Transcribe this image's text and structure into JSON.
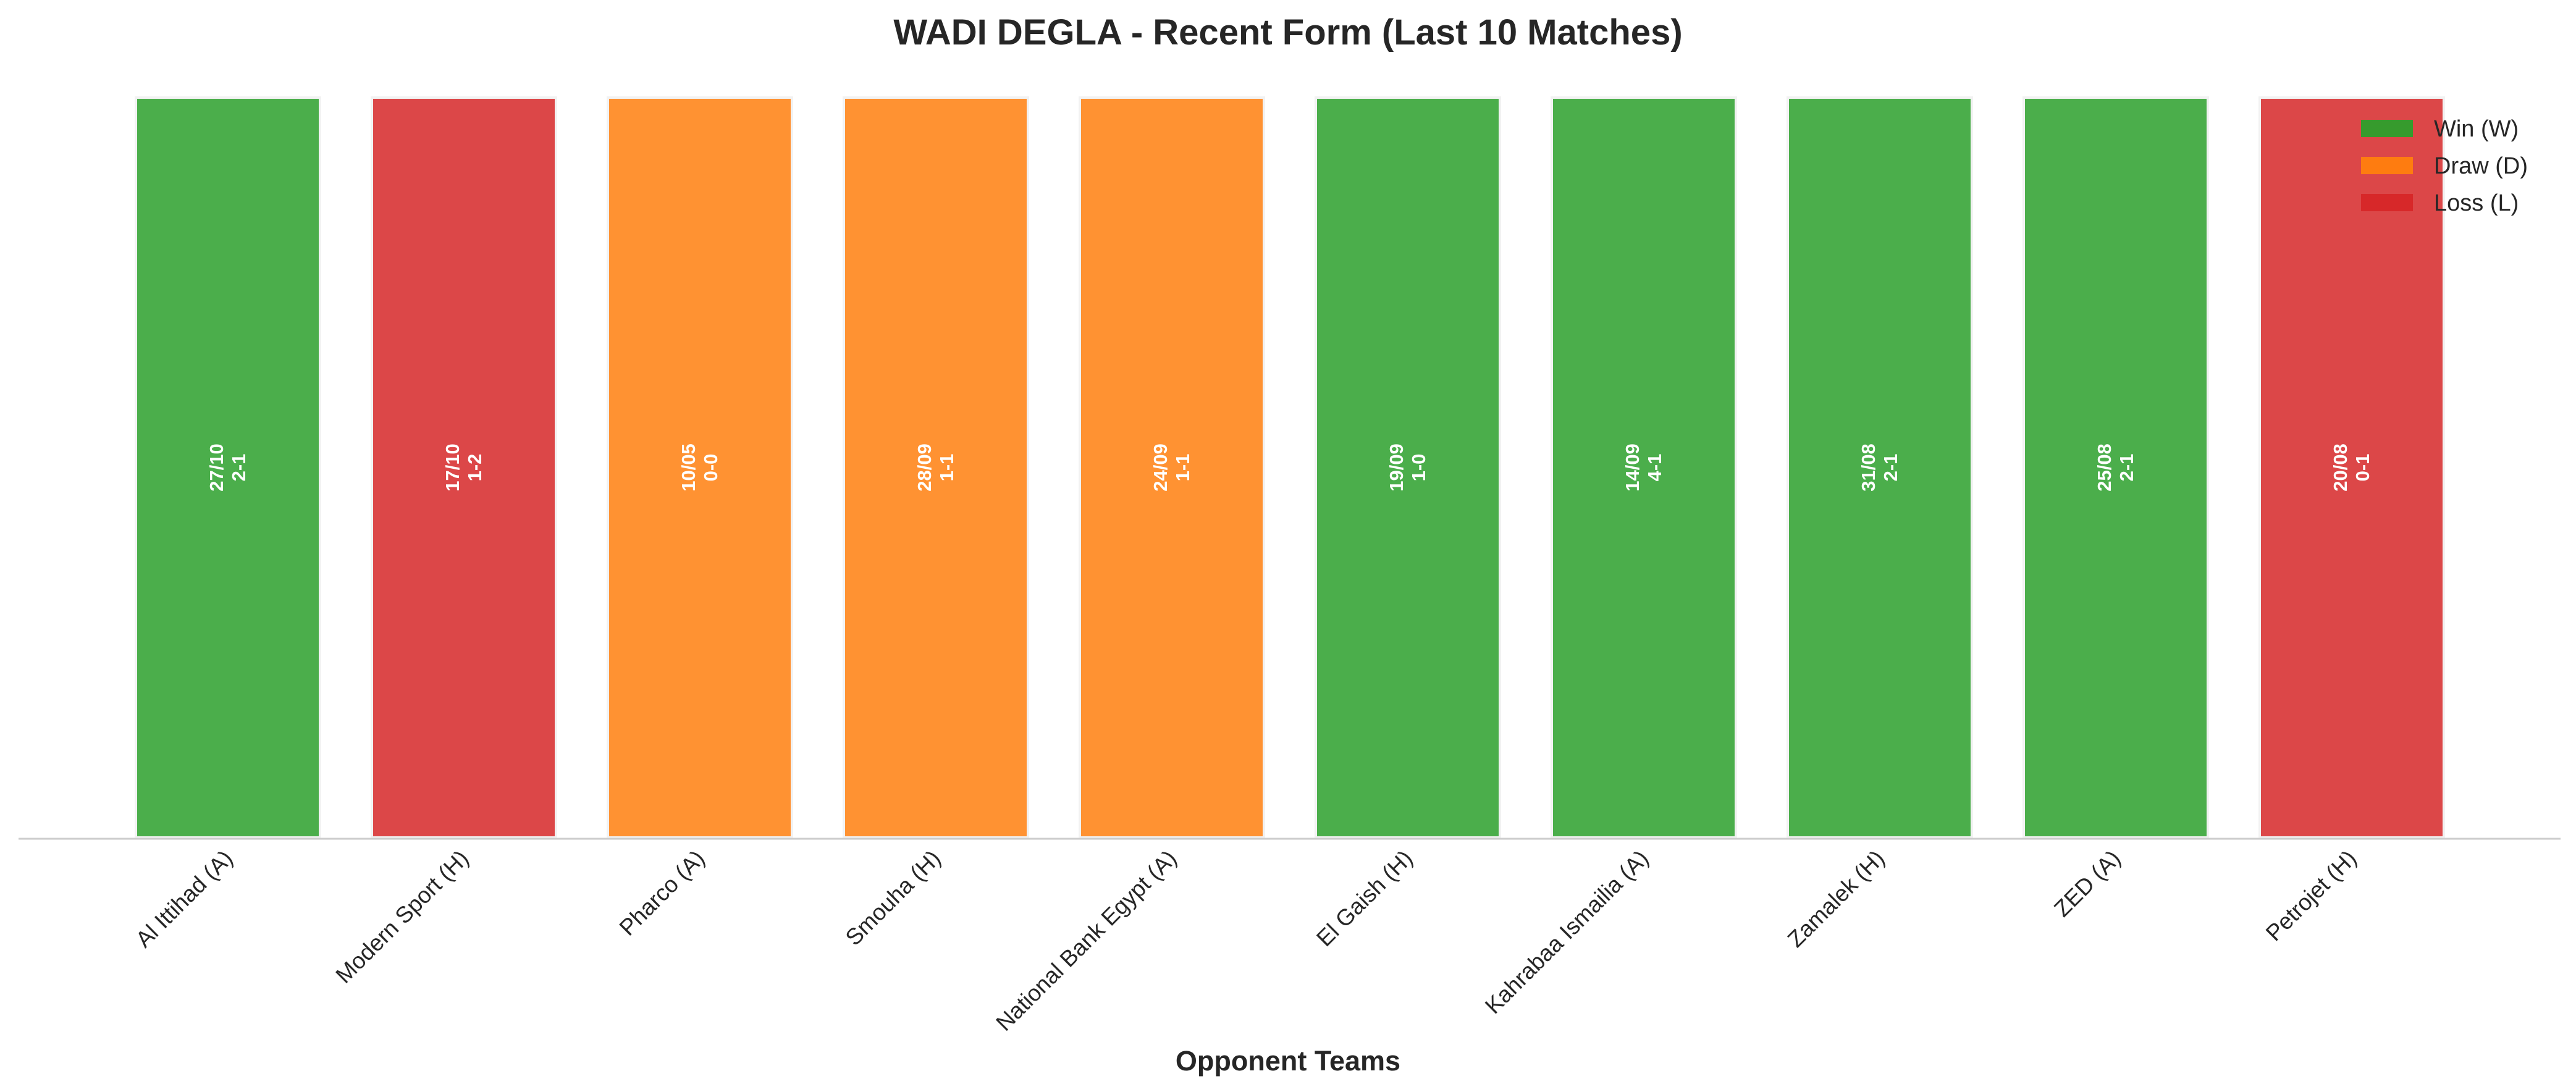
{
  "chart_data": {
    "type": "bar",
    "title": "WADI DEGLA - Recent Form (Last 10 Matches)",
    "xlabel": "Opponent Teams",
    "ylabel": "",
    "ylim": [
      0,
      1
    ],
    "grid": false,
    "legend_position": "top-right",
    "categories": [
      "Al Ittihad (A)",
      "Modern Sport (H)",
      "Pharco (A)",
      "Smouha (H)",
      "National Bank Egypt (A)",
      "El Gaish (H)",
      "Kahrabaa Ismailia (A)",
      "Zamalek (H)",
      "ZED (A)",
      "Petrojet (H)"
    ],
    "values": [
      1,
      1,
      1,
      1,
      1,
      1,
      1,
      1,
      1,
      1
    ],
    "results": [
      "W",
      "L",
      "D",
      "D",
      "D",
      "W",
      "W",
      "W",
      "W",
      "L"
    ],
    "dates": [
      "27/10",
      "17/10",
      "10/05",
      "28/09",
      "24/09",
      "19/09",
      "14/09",
      "31/08",
      "25/08",
      "20/08"
    ],
    "scores": [
      "2-1",
      "1-2",
      "0-0",
      "1-1",
      "1-1",
      "1-0",
      "4-1",
      "2-1",
      "2-1",
      "0-1"
    ],
    "legend": [
      {
        "key": "W",
        "label": "Win (W)",
        "color": "#2ca02c"
      },
      {
        "key": "D",
        "label": "Draw (D)",
        "color": "#ff7f0e"
      },
      {
        "key": "L",
        "label": "Loss (L)",
        "color": "#d62728"
      }
    ]
  }
}
